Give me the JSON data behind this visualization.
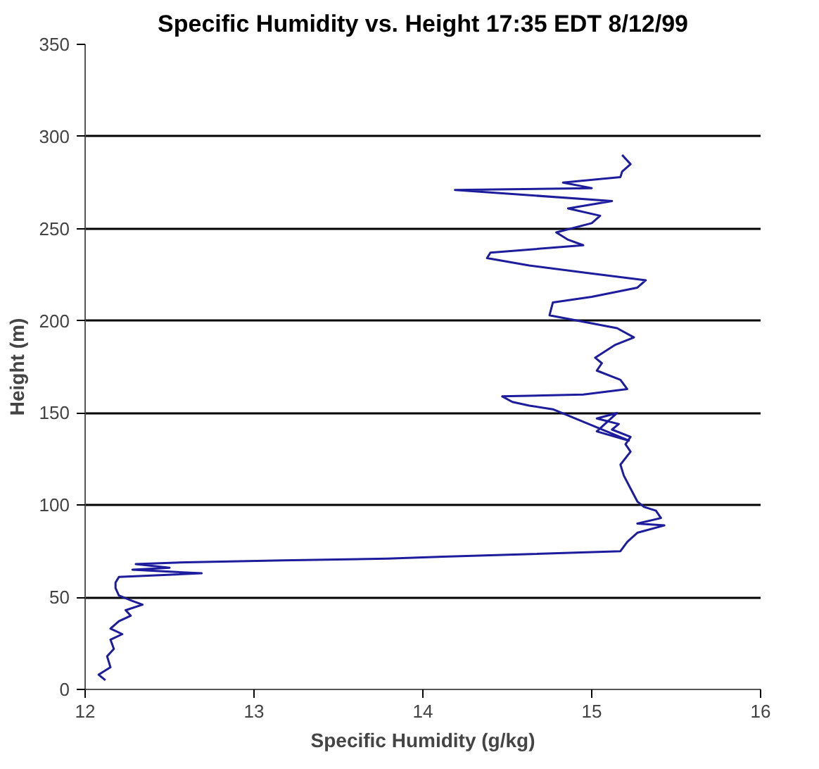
{
  "chart_data": {
    "type": "line",
    "title": "Specific Humidity vs. Height 17:35 EDT 8/12/99",
    "xlabel": "Specific Humidity (g/kg)",
    "ylabel": "Height (m)",
    "xlim": [
      12,
      16
    ],
    "xticks": [
      12,
      13,
      14,
      15,
      16
    ],
    "ylim": [
      0,
      350
    ],
    "yticks": [
      0,
      50,
      100,
      150,
      200,
      250,
      300,
      350
    ],
    "grid": "y",
    "marker": "none",
    "line_style": "solid",
    "series": [
      {
        "color": "#1c1c9c",
        "x": [
          12.12,
          12.08,
          12.15,
          12.13,
          12.17,
          12.15,
          12.22,
          12.15,
          12.2,
          12.27,
          12.24,
          12.34,
          12.28,
          12.2,
          12.18,
          12.18,
          12.2,
          12.69,
          12.28,
          12.5,
          12.3,
          12.6,
          13.17,
          13.79,
          14.12,
          15.17,
          15.21,
          15.27,
          15.43,
          15.27,
          15.41,
          15.38,
          15.31,
          15.27,
          15.23,
          15.19,
          15.17,
          15.23,
          15.2,
          15.23,
          15.12,
          15.16,
          15.03,
          15.15,
          15.03,
          15.22,
          14.77,
          14.63,
          14.53,
          14.47,
          14.95,
          15.21,
          15.17,
          15.03,
          15.06,
          15.02,
          15.14,
          15.25,
          15.15,
          14.75,
          14.77,
          15.0,
          15.27,
          15.32,
          14.97,
          14.63,
          14.38,
          14.4,
          14.95,
          14.86,
          14.79,
          15.0,
          15.05,
          14.86,
          15.12,
          14.19,
          15.0,
          14.83,
          15.17,
          15.18,
          15.23,
          15.18
        ],
        "values": [
          5,
          8,
          12,
          18,
          22,
          27,
          30,
          33,
          37,
          40,
          43,
          46,
          48,
          51,
          55,
          58,
          61,
          63,
          65,
          66,
          68,
          69,
          70,
          71,
          72,
          75,
          80,
          85,
          89,
          90,
          93,
          97,
          99,
          102,
          109,
          116,
          122,
          129,
          133,
          137,
          141,
          144,
          147,
          150,
          140,
          135,
          152,
          154,
          156,
          159,
          160,
          163,
          168,
          173,
          177,
          180,
          187,
          191,
          196,
          203,
          210,
          213,
          218,
          222,
          226,
          230,
          234,
          237,
          241,
          244,
          248,
          253,
          257,
          261,
          265,
          271,
          272,
          275,
          278,
          281,
          285,
          290
        ]
      }
    ]
  }
}
